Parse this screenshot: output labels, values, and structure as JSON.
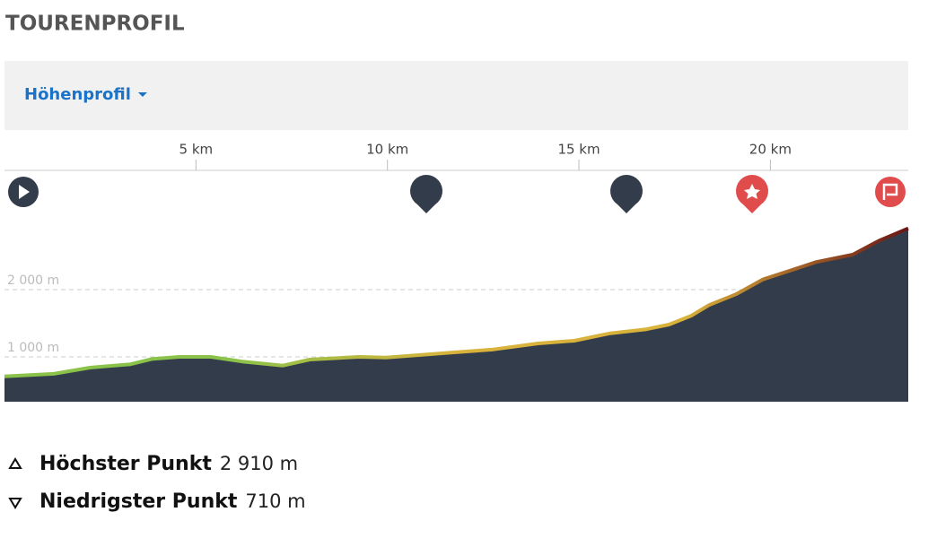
{
  "title": "TOURENPROFIL",
  "dropdown": "Höhenprofil",
  "chart_data": {
    "type": "area",
    "x": [
      0,
      1.29,
      2.23,
      3.29,
      3.87,
      4.57,
      5.39,
      6.21,
      7.27,
      7.97,
      9.26,
      9.96,
      11.13,
      12.77,
      13.94,
      14.88,
      15.82,
      16.76,
      17.35,
      17.93,
      18.4,
      19.1,
      19.8,
      20.5,
      21.2,
      22.15,
      22.85,
      23.6
    ],
    "values": [
      710,
      747,
      840,
      890,
      970,
      1000,
      1000,
      930,
      870,
      960,
      1000,
      990,
      1040,
      1110,
      1200,
      1240,
      1350,
      1410,
      1480,
      1610,
      1770,
      1930,
      2150,
      2280,
      2410,
      2520,
      2730,
      2910
    ],
    "xlim": [
      0,
      23.6
    ],
    "xticks": [
      {
        "value": 5,
        "label": "5 km"
      },
      {
        "value": 10,
        "label": "10 km"
      },
      {
        "value": 15,
        "label": "15 km"
      },
      {
        "value": 20,
        "label": "20 km"
      }
    ],
    "ylim": [
      333,
      3773
    ],
    "yticks": [
      {
        "value": 1000,
        "label": "1 000 m"
      },
      {
        "value": 2000,
        "label": "2 000 m"
      }
    ],
    "color": "#323c4b",
    "line_colors": [
      "#8bc34a",
      "#8bc34a",
      "#d9b23c",
      "#d9b23c",
      "#6b1616"
    ],
    "grid": true
  },
  "stats": [
    {
      "label": "Höchster Punkt",
      "value": "2 910 m"
    },
    {
      "label": "Niedrigster Punkt",
      "value": "710 m"
    }
  ]
}
